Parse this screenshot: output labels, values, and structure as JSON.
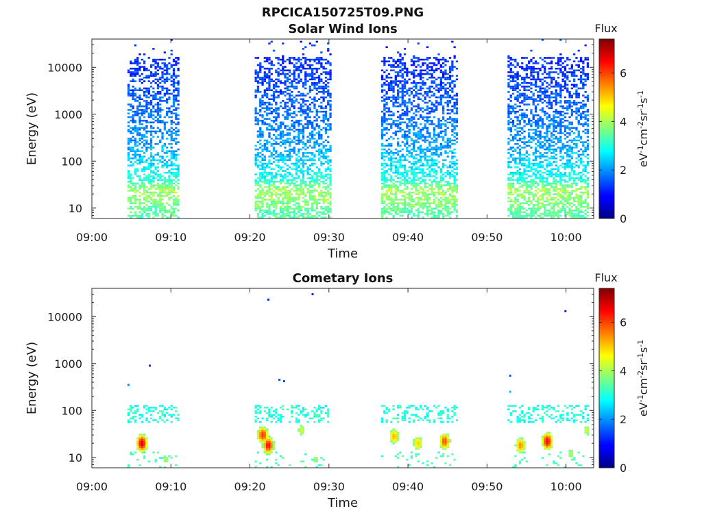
{
  "figure": {
    "title": "RPCICA150725T09.PNG"
  },
  "colorbar": {
    "title": "Flux",
    "label": "eV-1cm-2sr-1s-1",
    "label_parts": [
      {
        "t": "eV"
      },
      {
        "t": "-1",
        "sup": true
      },
      {
        "t": "cm"
      },
      {
        "t": "-2",
        "sup": true
      },
      {
        "t": "sr"
      },
      {
        "t": "-1",
        "sup": true
      },
      {
        "t": "s"
      },
      {
        "t": "-1",
        "sup": true
      }
    ],
    "ticks": [
      "0",
      "2",
      "4",
      "6"
    ],
    "range": [
      0,
      7.4
    ],
    "colormap": "jet"
  },
  "chart_data": [
    {
      "type": "heatmap",
      "title": "Solar Wind Ions",
      "xlabel": "Time",
      "ylabel": "Energy (eV)",
      "x_tick_labels": [
        "09:00",
        "09:10",
        "09:20",
        "09:30",
        "09:40",
        "09:50",
        "10:00"
      ],
      "x_ticks_min": [
        0,
        10,
        20,
        30,
        40,
        50,
        60
      ],
      "xlim_min": [
        0,
        63.5
      ],
      "yscale": "log",
      "y_tick_labels": [
        "10",
        "100",
        "1000",
        "10000"
      ],
      "y_ticks": [
        10,
        100,
        1000,
        10000
      ],
      "ylim": [
        6,
        40000
      ],
      "grid": false,
      "observation_windows_min": [
        [
          4.5,
          10.8
        ],
        [
          20.6,
          30.2
        ],
        [
          36.6,
          46.2
        ],
        [
          52.6,
          62.8
        ]
      ],
      "profile": [
        {
          "energy": 8,
          "flux": 3.4
        },
        {
          "energy": 15,
          "flux": 3.8
        },
        {
          "energy": 25,
          "flux": 3.9
        },
        {
          "energy": 40,
          "flux": 3.0
        },
        {
          "energy": 80,
          "flux": 2.6
        },
        {
          "energy": 200,
          "flux": 2.1
        },
        {
          "energy": 1000,
          "flux": 1.7
        },
        {
          "energy": 5000,
          "flux": 1.4
        },
        {
          "energy": 15000,
          "flux": 1.2
        }
      ]
    },
    {
      "type": "heatmap",
      "title": "Cometary Ions",
      "xlabel": "Time",
      "ylabel": "Energy (eV)",
      "x_tick_labels": [
        "09:00",
        "09:10",
        "09:20",
        "09:30",
        "09:40",
        "09:50",
        "10:00"
      ],
      "x_ticks_min": [
        0,
        10,
        20,
        30,
        40,
        50,
        60
      ],
      "xlim_min": [
        0,
        63.5
      ],
      "yscale": "log",
      "y_tick_labels": [
        "10",
        "100",
        "1000",
        "10000"
      ],
      "y_ticks": [
        10,
        100,
        1000,
        10000
      ],
      "ylim": [
        6,
        40000
      ],
      "grid": false,
      "observation_windows_min": [
        [
          4.5,
          10.8
        ],
        [
          20.6,
          30.2
        ],
        [
          36.6,
          46.2
        ],
        [
          52.6,
          62.8
        ]
      ],
      "hotspots": [
        {
          "t_min": 6.2,
          "energy": 20,
          "flux": 6.8
        },
        {
          "t_min": 9.2,
          "energy": 9,
          "flux": 4.0
        },
        {
          "t_min": 21.5,
          "energy": 30,
          "flux": 6.2
        },
        {
          "t_min": 22.2,
          "energy": 18,
          "flux": 6.5
        },
        {
          "t_min": 26.4,
          "energy": 38,
          "flux": 4.3
        },
        {
          "t_min": 28.2,
          "energy": 9,
          "flux": 3.9
        },
        {
          "t_min": 38.1,
          "energy": 28,
          "flux": 5.2
        },
        {
          "t_min": 41.1,
          "energy": 20,
          "flux": 5.0
        },
        {
          "t_min": 44.5,
          "energy": 22,
          "flux": 6.0
        },
        {
          "t_min": 54.1,
          "energy": 18,
          "flux": 5.5
        },
        {
          "t_min": 57.5,
          "energy": 22,
          "flux": 6.6
        },
        {
          "t_min": 60.5,
          "energy": 12,
          "flux": 4.0
        },
        {
          "t_min": 62.5,
          "energy": 38,
          "flux": 4.2
        }
      ],
      "sparse_points": [
        {
          "t_min": 4.5,
          "energy": 350,
          "flux": 1.9
        },
        {
          "t_min": 7.2,
          "energy": 900,
          "flux": 1.3
        },
        {
          "t_min": 22.2,
          "energy": 23000,
          "flux": 1.2
        },
        {
          "t_min": 23.6,
          "energy": 450,
          "flux": 1.5
        },
        {
          "t_min": 24.2,
          "energy": 420,
          "flux": 1.5
        },
        {
          "t_min": 27.8,
          "energy": 30000,
          "flux": 1.2
        },
        {
          "t_min": 52.8,
          "energy": 550,
          "flux": 1.5
        },
        {
          "t_min": 52.8,
          "energy": 250,
          "flux": 2.3
        },
        {
          "t_min": 59.8,
          "energy": 13000,
          "flux": 1.2
        }
      ]
    }
  ]
}
